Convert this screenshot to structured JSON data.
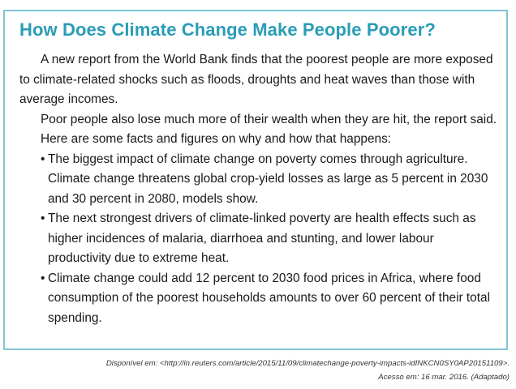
{
  "article": {
    "title": "How Does Climate Change Make People Poorer?",
    "paragraphs": [
      "A new report from the World Bank finds that the poorest people are more exposed to climate-related shocks such as floods, droughts and heat waves than those with average incomes.",
      "Poor people also lose much more of their wealth when they are hit, the report said.",
      "Here are some facts and figures on why and how that happens:"
    ],
    "bullet_marker": "•",
    "bullets": [
      "The biggest impact of climate change on poverty comes through agriculture. Climate change threatens global crop-yield losses as large as 5 percent in 2030 and 30 percent in 2080, models show.",
      "The next strongest drivers of climate-linked poverty are health effects such as higher incidences of malaria, diarrhoea and stunting, and lower labour productivity due to extreme heat.",
      "Climate change could add 12 percent to 2030 food prices in Africa, where food consumption of the poorest households amounts to over 60 percent of their total spending."
    ]
  },
  "source": {
    "available_at": "Disponível em: <http://in.reuters.com/article/2015/11/09/climatechange-poverty-impacts-idINKCN0SY0AP20151109>.",
    "accessed_on": "Acesso em: 16 mar. 2016. (Adaptado)"
  },
  "colors": {
    "accent": "#2a9cb6",
    "border": "#7fc6cf",
    "text": "#1a1a1a"
  }
}
